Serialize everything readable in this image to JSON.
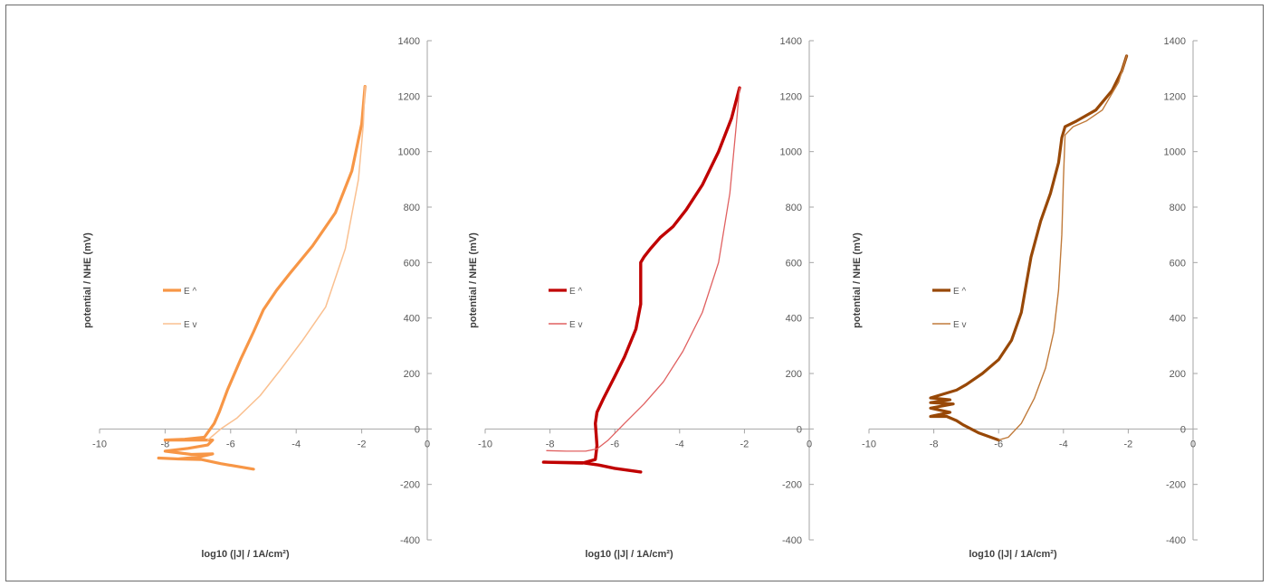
{
  "chart_data": [
    {
      "type": "line",
      "xlabel": "log10 (|J| / 1A/cm²)",
      "ylabel": "potential / NHE (mV)",
      "xlim": [
        -10,
        0
      ],
      "ylim": [
        -400,
        1400
      ],
      "xticks": [
        "-10",
        "-8",
        "-6",
        "-4",
        "-2",
        "0"
      ],
      "yticks": [
        "1400",
        "1200",
        "1000",
        "800",
        "600",
        "400",
        "200",
        "0",
        "-200",
        "-400"
      ],
      "legend_position": "left-middle",
      "series": [
        {
          "name": "E ^",
          "color": "#F79646",
          "width": 3.2,
          "x": [
            -5.3,
            -6.3,
            -6.9,
            -7.6,
            -8.2,
            -7.6,
            -7.0,
            -6.55,
            -7.2,
            -8.0,
            -7.3,
            -6.7,
            -6.55,
            -6.8,
            -7.4,
            -8.0,
            -7.4,
            -6.8,
            -6.5,
            -6.35,
            -6.1,
            -5.7,
            -5.3,
            -5.0,
            -4.6,
            -4.2,
            -3.5,
            -2.8,
            -2.3,
            -2.0,
            -1.9
          ],
          "y": [
            -145,
            -125,
            -110,
            -108,
            -105,
            -108,
            -102,
            -90,
            -92,
            -80,
            -70,
            -58,
            -40,
            -40,
            -40,
            -40,
            -37,
            -30,
            20,
            60,
            140,
            250,
            350,
            430,
            500,
            560,
            660,
            780,
            930,
            1100,
            1235
          ]
        },
        {
          "name": "E v",
          "color": "#FAC090",
          "width": 1.5,
          "x": [
            -1.9,
            -1.95,
            -2.1,
            -2.5,
            -3.1,
            -3.8,
            -4.5,
            -5.1,
            -5.8,
            -6.3,
            -6.55,
            -6.7
          ],
          "y": [
            1235,
            1100,
            900,
            650,
            440,
            320,
            210,
            120,
            40,
            0,
            -25,
            -40
          ]
        }
      ]
    },
    {
      "type": "line",
      "xlabel": "log10 (|J| / 1A/cm²)",
      "ylabel": "potential / NHE (mV)",
      "xlim": [
        -10,
        0
      ],
      "ylim": [
        -400,
        1400
      ],
      "xticks": [
        "-10",
        "-8",
        "-6",
        "-4",
        "-2",
        "0"
      ],
      "yticks": [
        "1400",
        "1200",
        "1000",
        "800",
        "600",
        "400",
        "200",
        "0",
        "-200",
        "-400"
      ],
      "legend_position": "left-middle",
      "series": [
        {
          "name": "E ^",
          "color": "#C00000",
          "width": 3.4,
          "x": [
            -5.2,
            -6.0,
            -6.5,
            -7.0,
            -8.2,
            -7.0,
            -6.6,
            -6.55,
            -6.6,
            -6.55,
            -6.35,
            -6.0,
            -5.7,
            -5.35,
            -5.2,
            -5.2,
            -5.2,
            -5.1,
            -4.9,
            -4.6,
            -4.2,
            -3.8,
            -3.3,
            -2.8,
            -2.4,
            -2.15
          ],
          "y": [
            -155,
            -142,
            -130,
            -122,
            -120,
            -123,
            -110,
            -60,
            20,
            60,
            110,
            190,
            260,
            360,
            450,
            540,
            600,
            620,
            650,
            690,
            730,
            790,
            880,
            1000,
            1120,
            1230
          ]
        },
        {
          "name": "E v",
          "color": "#E06060",
          "width": 1.3,
          "x": [
            -2.15,
            -2.25,
            -2.45,
            -2.8,
            -3.3,
            -3.9,
            -4.5,
            -5.1,
            -5.7,
            -6.2,
            -6.55,
            -6.9,
            -7.5,
            -8.1
          ],
          "y": [
            1230,
            1100,
            850,
            600,
            420,
            280,
            170,
            90,
            20,
            -40,
            -72,
            -80,
            -80,
            -78
          ]
        }
      ]
    },
    {
      "type": "line",
      "xlabel": "log10 (|J| / 1A/cm²)",
      "ylabel": "potential / NHE (mV)",
      "xlim": [
        -10,
        0
      ],
      "ylim": [
        -400,
        1400
      ],
      "xticks": [
        "-10",
        "-8",
        "-6",
        "-4",
        "-2",
        "0"
      ],
      "yticks": [
        "1400",
        "1200",
        "1000",
        "800",
        "600",
        "400",
        "200",
        "0",
        "-200",
        "-400"
      ],
      "legend_position": "left-middle",
      "series": [
        {
          "name": "E ^",
          "color": "#984807",
          "width": 3.2,
          "x": [
            -6.0,
            -6.6,
            -7.1,
            -7.3,
            -7.6,
            -8.1,
            -7.5,
            -8.1,
            -7.4,
            -8.1,
            -7.5,
            -8.1,
            -7.3,
            -7.0,
            -6.5,
            -6.0,
            -5.6,
            -5.3,
            -5.15,
            -5.0,
            -4.7,
            -4.4,
            -4.15,
            -4.05,
            -3.95,
            -3.6,
            -3.0,
            -2.5,
            -2.2,
            -2.05
          ],
          "y": [
            -40,
            -15,
            15,
            30,
            45,
            45,
            60,
            75,
            90,
            95,
            105,
            112,
            140,
            160,
            200,
            250,
            320,
            420,
            520,
            620,
            750,
            850,
            960,
            1050,
            1090,
            1110,
            1150,
            1220,
            1290,
            1345
          ]
        },
        {
          "name": "E v",
          "color": "#C07A3A",
          "width": 1.4,
          "x": [
            -2.05,
            -2.3,
            -2.8,
            -3.3,
            -3.7,
            -3.95,
            -4.0,
            -4.05,
            -4.15,
            -4.3,
            -4.55,
            -4.9,
            -5.3,
            -5.7,
            -6.0
          ],
          "y": [
            1345,
            1250,
            1150,
            1110,
            1090,
            1060,
            900,
            700,
            500,
            350,
            220,
            110,
            20,
            -30,
            -40
          ]
        }
      ]
    }
  ]
}
